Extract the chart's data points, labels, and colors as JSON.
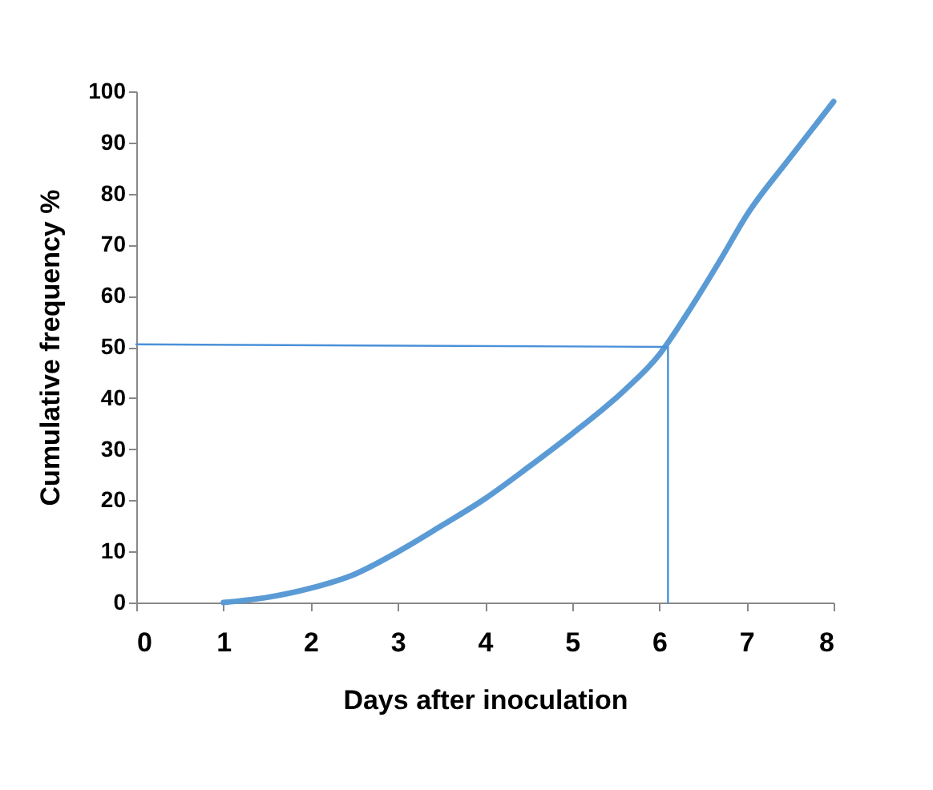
{
  "chart_data": {
    "type": "line",
    "xlabel": "Days after inoculation",
    "ylabel": "Cumulative frequency  %",
    "xlim": [
      0,
      8
    ],
    "xticks": [
      0,
      1,
      2,
      3,
      4,
      5,
      6,
      7,
      8
    ],
    "ylim": [
      0,
      100
    ],
    "yticks": [
      0,
      10,
      20,
      30,
      40,
      50,
      60,
      70,
      80,
      90,
      100
    ],
    "grid": false,
    "series": [
      {
        "color": "#5b9bd5",
        "x": [
          1,
          1.5,
          2,
          2.5,
          3,
          3.5,
          4,
          4.5,
          5,
          5.6,
          6,
          6.3,
          6.7,
          7,
          7.5,
          8
        ],
        "values": [
          0,
          1,
          2.8,
          5.5,
          9.9,
          15,
          20.3,
          26.5,
          33,
          41.5,
          48.5,
          56,
          67,
          75.7,
          87,
          98
        ]
      },
      {
        "color": "#4a90d9",
        "type": "line",
        "line_style": "solid",
        "x": [
          0,
          6.1,
          6.1
        ],
        "values": [
          50.5,
          50,
          0
        ]
      }
    ]
  }
}
